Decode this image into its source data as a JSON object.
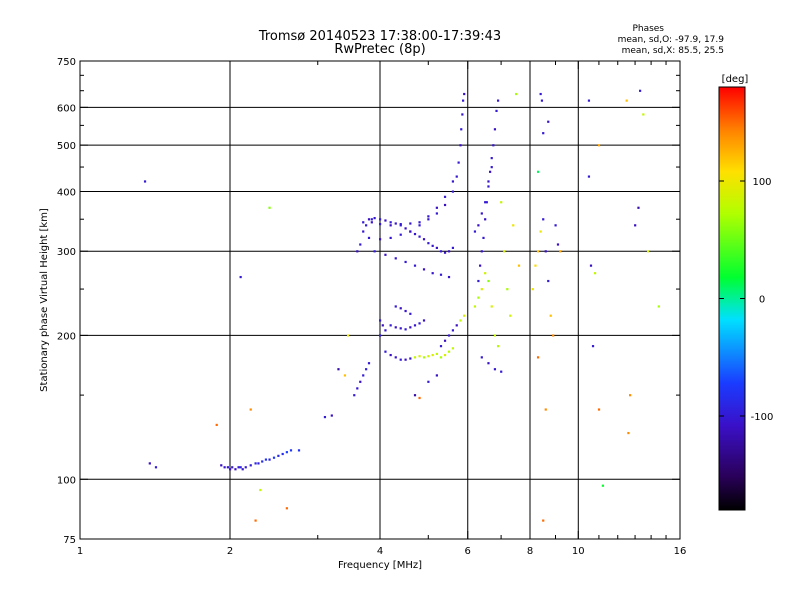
{
  "chart_data": {
    "type": "scatter",
    "title": "Tromsø 20140523 17:38:00-17:39:43",
    "subtitle": "RwPretec (8p)",
    "xlabel": "Frequency [MHz]",
    "ylabel": "Stationary phase Virtual Height [km]",
    "x_scale": "log",
    "y_scale": "log",
    "xlim": [
      1,
      16
    ],
    "ylim": [
      75,
      750
    ],
    "x_ticks": [
      1,
      2,
      4,
      6,
      8,
      10,
      16
    ],
    "y_ticks": [
      75,
      100,
      200,
      300,
      400,
      500,
      600,
      750
    ],
    "x_grid": [
      2,
      4,
      6,
      8,
      10
    ],
    "y_grid": [
      100,
      200,
      300,
      400,
      500,
      600
    ],
    "grid": true,
    "phases_header": "Phases",
    "phases_o": "mean, sd,O: -97.9, 17.9",
    "phases_x": "mean, sd,X:  85.5, 25.5",
    "colorbar": {
      "label": "[deg]",
      "min": -180,
      "max": 180,
      "ticks": [
        100,
        0,
        -100
      ],
      "colormap": "rainbow"
    },
    "points": [
      [
        1.35,
        420,
        -100
      ],
      [
        1.38,
        108,
        -110
      ],
      [
        1.42,
        106,
        -100
      ],
      [
        1.92,
        107,
        -110
      ],
      [
        1.95,
        106,
        -105
      ],
      [
        1.98,
        106,
        -100
      ],
      [
        2.0,
        105,
        -108
      ],
      [
        2.02,
        106,
        -102
      ],
      [
        2.05,
        105,
        -110
      ],
      [
        2.08,
        106,
        -100
      ],
      [
        2.1,
        106,
        -95
      ],
      [
        2.12,
        105,
        -105
      ],
      [
        2.15,
        106,
        -100
      ],
      [
        2.2,
        107,
        -98
      ],
      [
        2.25,
        108,
        -90
      ],
      [
        2.28,
        108,
        -100
      ],
      [
        2.32,
        109,
        -85
      ],
      [
        2.36,
        110,
        -80
      ],
      [
        2.4,
        110,
        -95
      ],
      [
        2.45,
        111,
        -75
      ],
      [
        2.5,
        112,
        -90
      ],
      [
        2.55,
        113,
        -85
      ],
      [
        2.6,
        114,
        -70
      ],
      [
        2.65,
        115,
        -75
      ],
      [
        1.88,
        130,
        150
      ],
      [
        2.1,
        265,
        -100
      ],
      [
        2.2,
        140,
        140
      ],
      [
        2.25,
        82,
        150
      ],
      [
        2.3,
        95,
        80
      ],
      [
        2.4,
        370,
        60
      ],
      [
        2.6,
        87,
        150
      ],
      [
        2.75,
        115,
        -80
      ],
      [
        3.1,
        135,
        -100
      ],
      [
        3.2,
        136,
        -110
      ],
      [
        3.3,
        170,
        -120
      ],
      [
        3.4,
        165,
        120
      ],
      [
        3.45,
        200,
        100
      ],
      [
        3.55,
        150,
        -100
      ],
      [
        3.6,
        155,
        -105
      ],
      [
        3.65,
        160,
        -110
      ],
      [
        3.7,
        165,
        -100
      ],
      [
        3.75,
        170,
        -95
      ],
      [
        3.8,
        175,
        -100
      ],
      [
        3.6,
        300,
        -110
      ],
      [
        3.65,
        310,
        -100
      ],
      [
        3.7,
        330,
        -105
      ],
      [
        3.75,
        340,
        -100
      ],
      [
        3.8,
        350,
        -110
      ],
      [
        3.85,
        350,
        -100
      ],
      [
        3.9,
        352,
        -105
      ],
      [
        4.0,
        350,
        -100
      ],
      [
        4.1,
        348,
        -110
      ],
      [
        4.2,
        345,
        -100
      ],
      [
        4.3,
        343,
        -105
      ],
      [
        4.4,
        340,
        -100
      ],
      [
        4.5,
        335,
        -110
      ],
      [
        4.6,
        330,
        -100
      ],
      [
        4.7,
        326,
        -105
      ],
      [
        4.8,
        322,
        -100
      ],
      [
        4.9,
        318,
        -110
      ],
      [
        5.0,
        312,
        -100
      ],
      [
        5.1,
        308,
        -105
      ],
      [
        5.2,
        305,
        -110
      ],
      [
        5.3,
        300,
        -100
      ],
      [
        5.4,
        298,
        -105
      ],
      [
        5.5,
        300,
        -110
      ],
      [
        5.6,
        305,
        -100
      ],
      [
        3.7,
        345,
        -100
      ],
      [
        3.85,
        345,
        -105
      ],
      [
        4.0,
        342,
        -100
      ],
      [
        4.2,
        340,
        -110
      ],
      [
        4.4,
        342,
        -100
      ],
      [
        4.6,
        343,
        -105
      ],
      [
        4.8,
        345,
        -100
      ],
      [
        5.0,
        350,
        -105
      ],
      [
        5.2,
        360,
        -100
      ],
      [
        5.4,
        375,
        -110
      ],
      [
        5.6,
        400,
        -100
      ],
      [
        5.7,
        430,
        -105
      ],
      [
        5.75,
        460,
        -100
      ],
      [
        5.8,
        500,
        -110
      ],
      [
        5.82,
        540,
        -100
      ],
      [
        5.85,
        580,
        -105
      ],
      [
        5.87,
        620,
        -100
      ],
      [
        5.9,
        640,
        -110
      ],
      [
        3.8,
        320,
        -100
      ],
      [
        4.0,
        318,
        -110
      ],
      [
        4.2,
        320,
        -105
      ],
      [
        4.4,
        325,
        -100
      ],
      [
        4.6,
        330,
        -110
      ],
      [
        4.8,
        340,
        -100
      ],
      [
        5.0,
        355,
        -105
      ],
      [
        5.2,
        370,
        -110
      ],
      [
        5.4,
        390,
        -100
      ],
      [
        5.6,
        420,
        -105
      ],
      [
        3.9,
        300,
        -100
      ],
      [
        4.1,
        295,
        -110
      ],
      [
        4.3,
        290,
        -105
      ],
      [
        4.5,
        285,
        -100
      ],
      [
        4.7,
        280,
        -100
      ],
      [
        4.9,
        275,
        -110
      ],
      [
        5.1,
        270,
        -105
      ],
      [
        5.3,
        268,
        -100
      ],
      [
        5.5,
        265,
        -105
      ],
      [
        4.3,
        230,
        -100
      ],
      [
        4.4,
        228,
        -110
      ],
      [
        4.5,
        225,
        -105
      ],
      [
        4.6,
        222,
        -100
      ],
      [
        4.2,
        210,
        -100
      ],
      [
        4.3,
        208,
        -110
      ],
      [
        4.4,
        207,
        -105
      ],
      [
        4.5,
        206,
        -100
      ],
      [
        4.6,
        208,
        -110
      ],
      [
        4.7,
        210,
        -105
      ],
      [
        4.8,
        212,
        -100
      ],
      [
        4.9,
        215,
        -110
      ],
      [
        4.0,
        200,
        -100
      ],
      [
        4.05,
        210,
        -110
      ],
      [
        4.1,
        205,
        -105
      ],
      [
        4.0,
        215,
        -100
      ],
      [
        4.1,
        185,
        -100
      ],
      [
        4.2,
        182,
        -110
      ],
      [
        4.3,
        180,
        -105
      ],
      [
        4.4,
        178,
        -100
      ],
      [
        4.5,
        178,
        -110
      ],
      [
        4.6,
        179,
        -100
      ],
      [
        4.7,
        180,
        80
      ],
      [
        4.8,
        181,
        90
      ],
      [
        4.9,
        180,
        70
      ],
      [
        5.0,
        181,
        85
      ],
      [
        5.1,
        182,
        90
      ],
      [
        5.2,
        183,
        80
      ],
      [
        5.3,
        190,
        -100
      ],
      [
        5.4,
        195,
        -110
      ],
      [
        5.5,
        200,
        -105
      ],
      [
        5.6,
        205,
        -100
      ],
      [
        5.7,
        210,
        -110
      ],
      [
        5.8,
        215,
        80
      ],
      [
        5.9,
        220,
        90
      ],
      [
        5.3,
        180,
        70
      ],
      [
        5.4,
        182,
        90
      ],
      [
        5.5,
        185,
        75
      ],
      [
        5.6,
        188,
        80
      ],
      [
        5.0,
        160,
        -100
      ],
      [
        5.2,
        165,
        -110
      ],
      [
        4.7,
        150,
        -120
      ],
      [
        4.8,
        148,
        150
      ],
      [
        6.3,
        260,
        -100
      ],
      [
        6.35,
        280,
        -110
      ],
      [
        6.4,
        300,
        -105
      ],
      [
        6.45,
        320,
        -100
      ],
      [
        6.5,
        350,
        -110
      ],
      [
        6.55,
        380,
        -100
      ],
      [
        6.6,
        410,
        -105
      ],
      [
        6.65,
        440,
        -110
      ],
      [
        6.7,
        470,
        -100
      ],
      [
        6.75,
        500,
        -105
      ],
      [
        6.8,
        540,
        -110
      ],
      [
        6.85,
        590,
        -100
      ],
      [
        6.9,
        620,
        -105
      ],
      [
        6.2,
        330,
        -100
      ],
      [
        6.3,
        340,
        -110
      ],
      [
        6.4,
        360,
        -105
      ],
      [
        6.5,
        380,
        -100
      ],
      [
        6.6,
        420,
        -110
      ],
      [
        6.7,
        450,
        -100
      ],
      [
        6.2,
        230,
        80
      ],
      [
        6.3,
        240,
        70
      ],
      [
        6.4,
        250,
        90
      ],
      [
        6.5,
        270,
        85
      ],
      [
        6.6,
        260,
        60
      ],
      [
        6.7,
        230,
        90
      ],
      [
        6.8,
        200,
        80
      ],
      [
        6.9,
        190,
        75
      ],
      [
        6.4,
        180,
        -100
      ],
      [
        6.6,
        175,
        -110
      ],
      [
        6.8,
        170,
        -105
      ],
      [
        7.0,
        168,
        -100
      ],
      [
        7.0,
        380,
        80
      ],
      [
        7.1,
        300,
        90
      ],
      [
        7.2,
        250,
        70
      ],
      [
        7.3,
        220,
        85
      ],
      [
        7.5,
        640,
        70
      ],
      [
        7.4,
        340,
        100
      ],
      [
        7.6,
        280,
        120
      ],
      [
        8.1,
        250,
        100
      ],
      [
        8.2,
        280,
        110
      ],
      [
        8.3,
        300,
        120
      ],
      [
        8.4,
        330,
        100
      ],
      [
        8.5,
        350,
        -100
      ],
      [
        8.6,
        300,
        -110
      ],
      [
        8.7,
        260,
        -100
      ],
      [
        8.8,
        220,
        120
      ],
      [
        8.9,
        200,
        140
      ],
      [
        8.3,
        180,
        150
      ],
      [
        8.4,
        640,
        -100
      ],
      [
        8.45,
        620,
        -100
      ],
      [
        8.5,
        530,
        -100
      ],
      [
        8.7,
        560,
        -110
      ],
      [
        9.0,
        340,
        -100
      ],
      [
        9.1,
        310,
        -110
      ],
      [
        9.2,
        300,
        130
      ],
      [
        8.5,
        82,
        150
      ],
      [
        8.6,
        140,
        140
      ],
      [
        8.3,
        440,
        10
      ],
      [
        10.5,
        620,
        -100
      ],
      [
        10.6,
        280,
        -110
      ],
      [
        10.8,
        270,
        80
      ],
      [
        10.7,
        190,
        -100
      ],
      [
        11.0,
        140,
        150
      ],
      [
        11.2,
        97,
        20
      ],
      [
        10.5,
        430,
        -100
      ],
      [
        11.0,
        500,
        130
      ],
      [
        13.0,
        340,
        -110
      ],
      [
        13.5,
        580,
        80
      ],
      [
        13.3,
        650,
        -100
      ],
      [
        13.8,
        300,
        90
      ],
      [
        14.5,
        230,
        70
      ],
      [
        12.5,
        620,
        120
      ],
      [
        12.7,
        150,
        140
      ],
      [
        12.6,
        125,
        140
      ],
      [
        13.2,
        370,
        -120
      ]
    ]
  }
}
